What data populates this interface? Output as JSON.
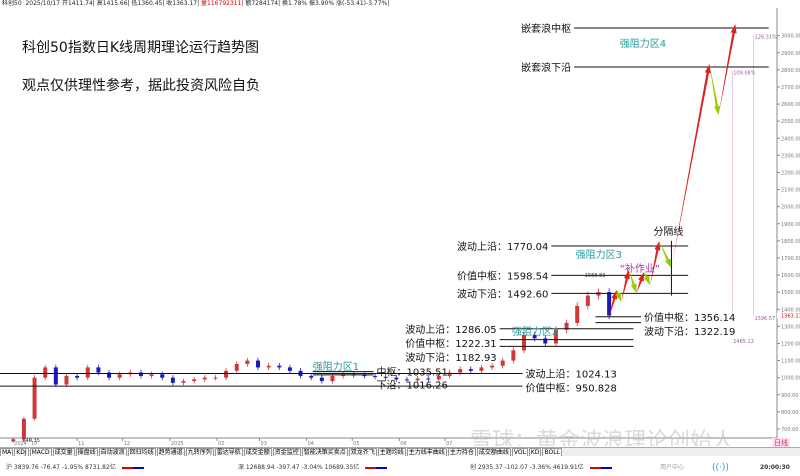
{
  "header": {
    "name": "科创50",
    "date": "2025/10/17",
    "open": "开1411.74|",
    "high": "高1415.66|",
    "low": "低1360.45|",
    "close": "收1363.17|",
    "volume": "量116792311|",
    "amount": "额7284174|",
    "turnover": "换1.78%",
    "amplitude": "振3.90%",
    "change": "涨(-53.41)-3.77%|"
  },
  "colors": {
    "up": "#d03838",
    "down": "#1a1ab8",
    "up_arrow": "#dd2222",
    "down_arrow": "#99cc00",
    "zone_label": "#2a9a9a",
    "note": "#b030b0",
    "pct": "#9a5a9a"
  },
  "chart_data": {
    "type": "candlestick",
    "title": "科创50指数日K线周期理论运行趋势图",
    "subtitle": "观点仅供理性参考，据此投资风险自负",
    "ylim": [
      700,
      3050
    ],
    "y_ticks": [
      700,
      800,
      900,
      1000,
      1100,
      1200,
      1300,
      1400,
      1500,
      1600,
      1700,
      1800,
      1900,
      2000,
      2100,
      2200,
      2300,
      2400,
      2500,
      2600,
      2700,
      2800,
      2900,
      3000
    ],
    "y_tick_format": "2dp",
    "last_price": "1363.17",
    "x_ticks": [
      [
        "2024-09-20",
        "2024"
      ],
      [
        "2024-10-01",
        "10"
      ],
      [
        "2024-11-01",
        "11"
      ],
      [
        "2024-12-01",
        "12"
      ],
      [
        "2025-01-01",
        "2025"
      ],
      [
        "2025-02-01",
        "02"
      ],
      [
        "2025-03-01",
        "03"
      ],
      [
        "2025-04-01",
        "04"
      ],
      [
        "2025-05-01",
        "05"
      ],
      [
        "2025-06-01",
        "06"
      ],
      [
        "2025-07-01",
        "07"
      ]
    ],
    "closes": [
      [
        "2024-09-20",
        640
      ],
      [
        "2024-09-27",
        760
      ],
      [
        "2024-10-04",
        1000
      ],
      [
        "2024-10-11",
        1060
      ],
      [
        "2024-10-18",
        960
      ],
      [
        "2024-10-25",
        1010
      ],
      [
        "2024-11-01",
        1000
      ],
      [
        "2024-11-08",
        1060
      ],
      [
        "2024-11-15",
        1030
      ],
      [
        "2024-11-22",
        1000
      ],
      [
        "2024-11-29",
        1020
      ],
      [
        "2024-12-06",
        1030
      ],
      [
        "2024-12-13",
        1010
      ],
      [
        "2024-12-20",
        1020
      ],
      [
        "2024-12-27",
        1000
      ],
      [
        "2025-01-03",
        970
      ],
      [
        "2025-01-10",
        980
      ],
      [
        "2025-01-17",
        990
      ],
      [
        "2025-01-24",
        1000
      ],
      [
        "2025-01-31",
        1000
      ],
      [
        "2025-02-07",
        1040
      ],
      [
        "2025-02-14",
        1080
      ],
      [
        "2025-02-21",
        1100
      ],
      [
        "2025-02-28",
        1060
      ],
      [
        "2025-03-07",
        1070
      ],
      [
        "2025-03-14",
        1060
      ],
      [
        "2025-03-21",
        1040
      ],
      [
        "2025-03-28",
        1010
      ],
      [
        "2025-04-04",
        1000
      ],
      [
        "2025-04-11",
        980
      ],
      [
        "2025-04-18",
        1010
      ],
      [
        "2025-04-25",
        1020
      ],
      [
        "2025-05-02",
        1015
      ],
      [
        "2025-05-09",
        1010
      ],
      [
        "2025-05-16",
        1005
      ],
      [
        "2025-05-23",
        1000
      ],
      [
        "2025-05-30",
        990
      ],
      [
        "2025-06-06",
        985
      ],
      [
        "2025-06-13",
        995
      ],
      [
        "2025-06-20",
        990
      ],
      [
        "2025-06-27",
        1010
      ],
      [
        "2025-07-04",
        1030
      ],
      [
        "2025-07-11",
        1050
      ],
      [
        "2025-07-18",
        1040
      ],
      [
        "2025-07-25",
        1060
      ],
      [
        "2025-08-01",
        1070
      ],
      [
        "2025-08-08",
        1100
      ],
      [
        "2025-08-15",
        1160
      ],
      [
        "2025-08-22",
        1250
      ],
      [
        "2025-08-29",
        1230
      ],
      [
        "2025-09-05",
        1200
      ],
      [
        "2025-09-12",
        1280
      ],
      [
        "2025-09-19",
        1320
      ],
      [
        "2025-09-26",
        1420
      ],
      [
        "2025-10-03",
        1480
      ],
      [
        "2025-10-10",
        1500
      ],
      [
        "2025-10-17",
        1363
      ]
    ],
    "projection": [
      [
        "2025-10-17",
        1355
      ],
      [
        "2025-10-22",
        1513
      ],
      [
        "2025-10-25",
        1443
      ],
      [
        "2025-10-30",
        1630
      ],
      [
        "2025-11-04",
        1495
      ],
      [
        "2025-11-09",
        1618
      ],
      [
        "2025-11-13",
        1542
      ],
      [
        "2025-11-19",
        1799
      ],
      [
        "2025-11-27",
        1641
      ],
      [
        "2025-12-22",
        2834
      ],
      [
        "2025-12-28",
        2536
      ],
      [
        "2026-01-08",
        3068
      ]
    ],
    "levels": [
      {
        "label": "嵌套浪中枢",
        "value": 3045,
        "from": "2025-09-24",
        "to": "2026-01-30",
        "side": "left"
      },
      {
        "label": "嵌套浪下沿",
        "value": 2817,
        "from": "2025-09-24",
        "to": "2026-01-30",
        "side": "left"
      },
      {
        "label": "波动上沿：1770.04",
        "value": 1770.04,
        "from": "2025-09-09",
        "to": "2025-12-08",
        "side": "left"
      },
      {
        "label": "价值中枢：1598.54",
        "value": 1598.54,
        "from": "2025-09-09",
        "to": "2025-12-08",
        "side": "left"
      },
      {
        "label": "波动下沿：1492.60",
        "value": 1492.6,
        "from": "2025-09-09",
        "to": "2025-12-08",
        "side": "left"
      },
      {
        "label": "价值中枢：1356.14",
        "value": 1356.14,
        "from": "2025-10-08",
        "to": "2025-11-07",
        "side": "right"
      },
      {
        "label": "波动下沿：1322.19",
        "value": 1322.19,
        "from": "2025-10-08",
        "to": "2025-11-07",
        "side": "right"
      },
      {
        "label": "波动上沿：1286.05",
        "value": 1286.05,
        "from": "2025-08-06",
        "to": "2025-11-02",
        "side": "left"
      },
      {
        "label": "价值中枢：1222.31",
        "value": 1222.31,
        "from": "2025-08-06",
        "to": "2025-11-02",
        "side": "left"
      },
      {
        "label": "波动下沿：1182.93",
        "value": 1182.93,
        "from": "2025-08-06",
        "to": "2025-11-02",
        "side": "left"
      },
      {
        "label": "中枢：1035.51",
        "value": 1035.51,
        "from": "2025-04-05",
        "to": "2025-05-15",
        "side": "right"
      },
      {
        "label": "下沿：1016.26",
        "value": 1016.26,
        "from": "2025-04-05",
        "to": "2025-05-15",
        "side": "right"
      },
      {
        "label": "波动上沿：1024.13",
        "value": 1024.13,
        "from": "2024-09-10",
        "to": "2025-08-21",
        "side": "right"
      },
      {
        "label": "价值中枢：950.828",
        "value": 950.828,
        "from": "2024-09-10",
        "to": "2025-08-21",
        "side": "right"
      }
    ],
    "zones": [
      [
        "强阻力区1",
        "2025-04-05",
        1045
      ],
      [
        "强阻力区2",
        "2025-08-14",
        1250
      ],
      [
        "强阻力区3",
        "2025-09-25",
        1700
      ],
      [
        "强阻力区4",
        "2025-10-24",
        2935
      ]
    ],
    "divider": {
      "label": "分隔线",
      "date": "2025-11-27",
      "top": 1800,
      "bottom": 1480
    },
    "note": {
      "label": "“补作业”",
      "date": "2025-10-24",
      "value": 1640
    },
    "peak_label": {
      "label": "1588.83",
      "date": "2025-10-01",
      "value": 1588.83
    },
    "low_label": {
      "label": "640.35",
      "date": "2024-09-26",
      "value": 640.35
    },
    "percent_marks": [
      {
        "label": "126.31%",
        "date": "2026-01-20",
        "value": 3000,
        "base": "1596.57"
      },
      {
        "label": "109.08%",
        "date": "2026-01-06",
        "value": 2790,
        "base": "1465.12"
      }
    ]
  },
  "toolbar": [
    "MA",
    "KDJ",
    "MACD",
    "成交量",
    "操盘线",
    "自动波浪",
    "回归均线",
    "趋势通道",
    "九转序列",
    "雷达导航",
    "成交金额",
    "资金监控",
    "智能决策买卖点",
    "双龙齐飞",
    "主题均线",
    "主力线丰曲线",
    "主力持仓",
    "成交额曲线",
    "VOL",
    "KD",
    "BOLL"
  ],
  "period": "日线",
  "ticker": {
    "sh": "沪 3839.76  -76.47  -1.95%  8731.82亿",
    "sz": "深 12688.94  -397.47  -3.04%  10689.35亿",
    "cy": "创 2935.37  -102.07  -3.36%  4619.91亿",
    "user": "用户中心",
    "time": "20:00:30"
  },
  "watermark": "雪球：黄金波浪理论创始人"
}
